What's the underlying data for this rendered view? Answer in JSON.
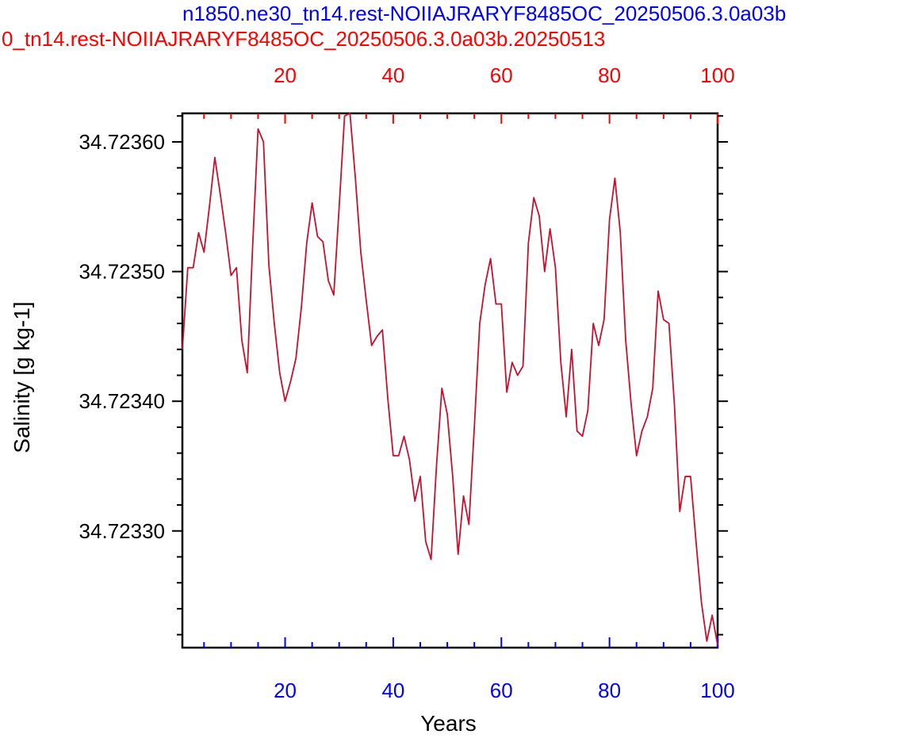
{
  "titles": {
    "blue": "n1850.ne30_tn14.rest-NOIIAJRARYF8485OC_20250506.3.0a03b",
    "red": "0_tn14.rest-NOIIAJRARYF8485OC_20250506.3.0a03b.20250513"
  },
  "colors": {
    "top_axis": "#ff0000",
    "bottom_axis": "#0000ff",
    "series": "#c8102e",
    "frame": "#000000"
  },
  "chart_data": {
    "type": "line",
    "xlabel": "Years",
    "ylabel": "Salinity [g kg-1]",
    "xlim": [
      1,
      100
    ],
    "ylim": [
      34.72321,
      34.723622
    ],
    "x_ticks": [
      "20",
      "40",
      "60",
      "80",
      "100"
    ],
    "top_x_ticks": [
      "20",
      "40",
      "60",
      "80",
      "100"
    ],
    "y_ticks": [
      "34.72330",
      "34.72340",
      "34.72350",
      "34.72360"
    ],
    "series": [
      {
        "x": [
          1,
          2,
          3,
          4,
          5,
          6,
          7,
          8,
          9,
          10,
          11,
          12,
          13,
          14,
          15,
          16,
          17,
          18,
          19,
          20,
          21,
          22,
          23,
          24,
          25,
          26,
          27,
          28,
          29,
          30,
          31,
          32,
          33,
          34,
          35,
          36,
          37,
          38,
          39,
          40,
          41,
          42,
          43,
          44,
          45,
          46,
          47,
          48,
          49,
          50,
          51,
          52,
          53,
          54,
          55,
          56,
          57,
          58,
          59,
          60,
          61,
          62,
          63,
          64,
          65,
          66,
          67,
          68,
          69,
          70,
          71,
          72,
          73,
          74,
          75,
          76,
          77,
          78,
          79,
          80,
          81,
          82,
          83,
          84,
          85,
          86,
          87,
          88,
          89,
          90,
          91,
          92,
          93,
          94,
          95,
          96,
          97,
          98,
          99,
          100
        ],
        "y": [
          34.72344,
          34.723503,
          34.723503,
          34.72353,
          34.723515,
          34.72355,
          34.723588,
          34.72356,
          34.72353,
          34.723497,
          34.723503,
          34.723447,
          34.723422,
          34.72352,
          34.72361,
          34.7236,
          34.723505,
          34.72346,
          34.723422,
          34.7234,
          34.723415,
          34.723433,
          34.723472,
          34.723522,
          34.723553,
          34.723527,
          34.723523,
          34.723493,
          34.723482,
          34.72355,
          34.72362,
          34.723622,
          34.723572,
          34.723515,
          34.723478,
          34.723443,
          34.72345,
          34.723455,
          34.723402,
          34.723358,
          34.723358,
          34.723373,
          34.723355,
          34.723323,
          34.723342,
          34.723292,
          34.723278,
          34.72335,
          34.72341,
          34.72339,
          34.723342,
          34.723282,
          34.723327,
          34.723305,
          34.72338,
          34.72346,
          34.72349,
          34.72351,
          34.723475,
          34.723475,
          34.723407,
          34.72343,
          34.72342,
          34.723427,
          34.723522,
          34.723557,
          34.723543,
          34.7235,
          34.723533,
          34.723503,
          34.72343,
          34.723388,
          34.72344,
          34.723377,
          34.723373,
          34.723393,
          34.72346,
          34.723443,
          34.723463,
          34.72354,
          34.723572,
          34.72353,
          34.723447,
          34.723398,
          34.723358,
          34.723377,
          34.723388,
          34.72341,
          34.723485,
          34.723463,
          34.72346,
          34.723398,
          34.723315,
          34.723342,
          34.723342,
          34.723292,
          34.723245,
          34.723215,
          34.723235,
          34.723212
        ]
      }
    ]
  }
}
